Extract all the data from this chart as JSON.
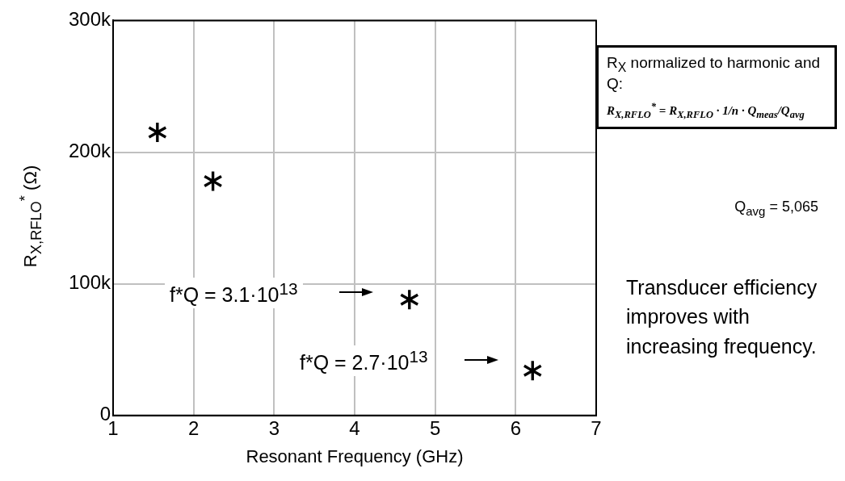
{
  "chart_data": {
    "type": "scatter",
    "xlabel": "Resonant Frequency (GHz)",
    "ylabel": "R$_{X,RFLO}$$^{*}$ (Ω)",
    "x": [
      1.55,
      2.24,
      4.68,
      6.21
    ],
    "values": [
      215000,
      178000,
      88000,
      34000
    ],
    "color": "#000000",
    "marker": "star",
    "xlim": [
      1,
      7
    ],
    "xticks": [
      1,
      2,
      3,
      4,
      5,
      6,
      7
    ],
    "ylim": [
      0,
      300000
    ],
    "yticks": [
      {
        "value": 0,
        "label": "0"
      },
      {
        "value": 100000,
        "label": "100k"
      },
      {
        "value": 200000,
        "label": "200k"
      },
      {
        "value": 300000,
        "label": "300k"
      }
    ],
    "grid": true,
    "legend": false,
    "annotations": [
      "f*Q = 3.1·10$^{13}$",
      "f*Q = 2.7·10$^{13}$",
      "R$_{X}$ normalized to harmonic and Q:",
      "R$_{X,RFLO}$$^{*}$ = R$_{X,RFLO}$ · 1/n · Q$_{meas}$/Q$_{avg}$",
      "Q$_{avg}$ = 5,065",
      "Transducer efficiency improves with increasing frequency."
    ]
  }
}
